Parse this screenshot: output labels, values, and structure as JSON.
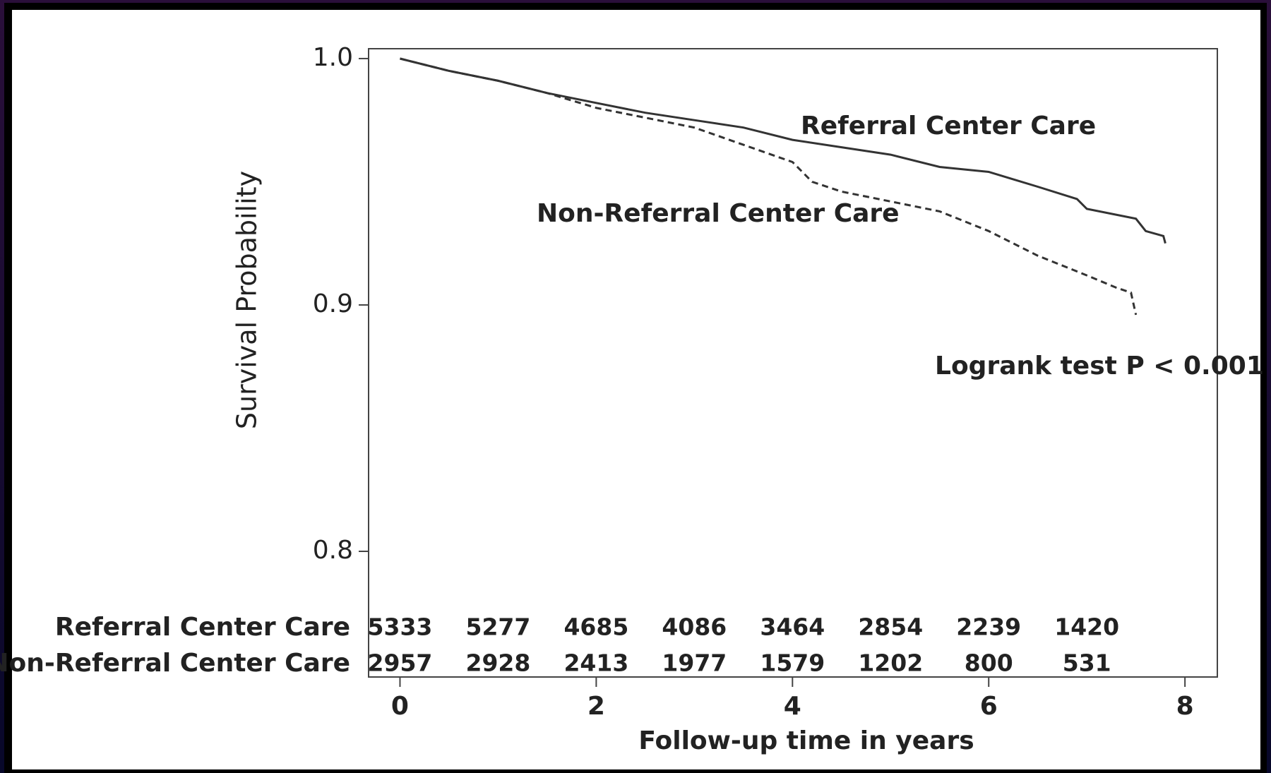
{
  "chart_data": {
    "type": "line",
    "ylabel": "Survival Probability",
    "xlabel": "Follow-up time in years",
    "xlim": [
      -0.32,
      8.33
    ],
    "ylim": [
      0.749,
      1.004
    ],
    "xticks": [
      0,
      2,
      4,
      6,
      8
    ],
    "yticks": [
      0.8,
      0.9,
      {
        "value": 1.0,
        "label": "1.0"
      }
    ],
    "series": [
      {
        "name": "Referral Center Care",
        "color": "#333333",
        "dash": false,
        "x": [
          0,
          0.5,
          1,
          1.5,
          2,
          2.5,
          3,
          3.5,
          4,
          4.5,
          5,
          5.5,
          6,
          6.5,
          6.9,
          7.0,
          7.5,
          7.6,
          7.78,
          7.8
        ],
        "values": [
          1.0,
          0.995,
          0.991,
          0.986,
          0.982,
          0.978,
          0.975,
          0.972,
          0.967,
          0.964,
          0.961,
          0.956,
          0.954,
          0.948,
          0.943,
          0.939,
          0.935,
          0.93,
          0.928,
          0.925
        ]
      },
      {
        "name": "Non-Referral Center Care",
        "color": "#333333",
        "dash": true,
        "x": [
          0,
          0.5,
          1,
          1.5,
          2,
          2.5,
          3,
          3.5,
          4,
          4.2,
          4.5,
          5,
          5.5,
          6,
          6.5,
          7,
          7.3,
          7.45,
          7.5
        ],
        "values": [
          1.0,
          0.995,
          0.991,
          0.986,
          0.98,
          0.976,
          0.972,
          0.965,
          0.958,
          0.95,
          0.946,
          0.942,
          0.938,
          0.93,
          0.92,
          0.912,
          0.907,
          0.905,
          0.896
        ]
      }
    ],
    "annotations": [
      "Referral Center Care",
      "Non-Referral Center Care",
      "Logrank test P < 0.001"
    ],
    "risk_table": {
      "x": [
        0,
        1,
        2,
        3,
        4,
        5,
        6,
        7
      ],
      "rows": [
        {
          "name": "Referral Center Care",
          "values": [
            5333,
            5277,
            4685,
            4086,
            3464,
            2854,
            2239,
            1420
          ]
        },
        {
          "name": "Non-Referral Center Care",
          "values": [
            2957,
            2928,
            2413,
            1977,
            1579,
            1202,
            800,
            531
          ]
        }
      ]
    }
  }
}
